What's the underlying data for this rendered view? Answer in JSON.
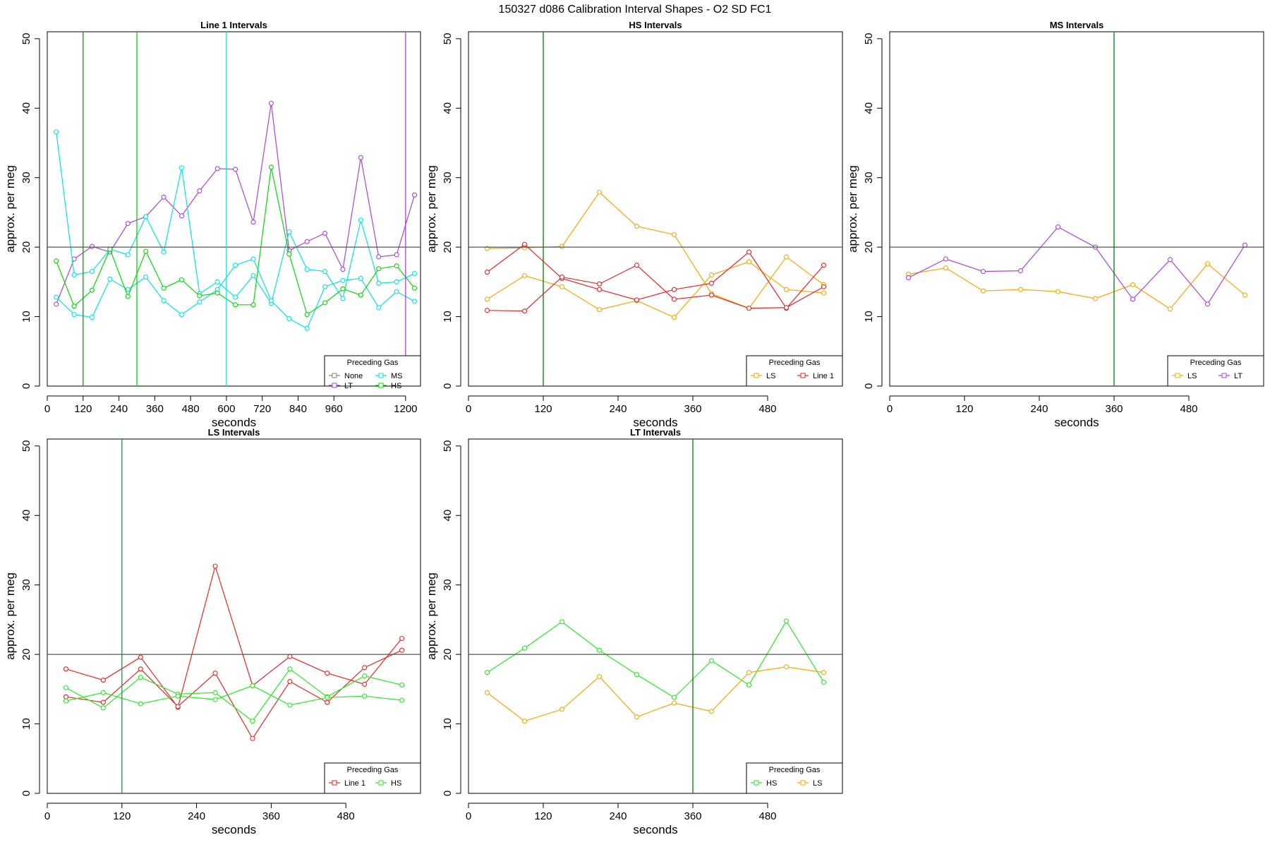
{
  "figure_title": "150327   d086   Calibration Interval Shapes - O2 SD FC1",
  "chart_data": [
    {
      "type": "line",
      "title": "Line 1 Intervals",
      "xlabel": "seconds",
      "ylabel": "approx. per meg",
      "xlim": [
        0,
        1250
      ],
      "ylim": [
        0,
        51
      ],
      "xticks": [
        0,
        120,
        240,
        360,
        480,
        600,
        720,
        840,
        960,
        1200
      ],
      "yticks": [
        0,
        10,
        20,
        30,
        40,
        50
      ],
      "hlines": [
        {
          "y": 20,
          "color": "#555555"
        }
      ],
      "vlines": [
        {
          "x": 120,
          "color": "#00a000"
        },
        {
          "x": 300,
          "color": "#00dd00"
        },
        {
          "x": 600,
          "color": "#00e5e5"
        },
        {
          "x": 1200,
          "color": "#b040e0"
        }
      ],
      "legend": {
        "title": "Preceding Gas",
        "position": "bottom-right",
        "ncol": 2,
        "entries": [
          {
            "name": "None",
            "color": "#808080"
          },
          {
            "name": "MS",
            "color": "#00e5e5"
          },
          {
            "name": "LT",
            "color": "#b040e0"
          },
          {
            "name": "HS",
            "color": "#00dd00"
          }
        ]
      },
      "series": [
        {
          "name": "LT",
          "color": "#b040e0",
          "x": [
            30,
            90,
            150,
            210,
            270,
            330,
            390,
            450,
            510,
            570,
            630,
            690,
            750,
            810,
            870,
            930,
            990,
            1050,
            1110,
            1170,
            1230
          ],
          "y": [
            11.8,
            18.3,
            20.1,
            19.3,
            23.4,
            24.4,
            27.2,
            24.5,
            28.1,
            31.3,
            31.2,
            23.6,
            40.7,
            19.5,
            20.8,
            22.0,
            16.8,
            32.9,
            18.6,
            18.9,
            27.5
          ]
        },
        {
          "name": "MS",
          "color": "#00e5e5",
          "x": [
            30,
            90,
            150,
            210,
            270,
            330,
            390,
            450,
            510,
            570,
            630,
            690,
            750,
            810,
            870,
            930,
            990,
            1050,
            1110,
            1170,
            1230
          ],
          "y": [
            36.6,
            16.0,
            16.5,
            19.7,
            18.9,
            24.4,
            19.3,
            31.4,
            13.3,
            15.0,
            12.8,
            15.9,
            11.9,
            22.2,
            16.8,
            16.5,
            12.6,
            23.9,
            14.8,
            15.0,
            16.2
          ]
        },
        {
          "name": "MS",
          "color": "#00e5e5",
          "x": [
            30,
            90,
            150,
            210,
            270,
            330,
            390,
            450,
            510,
            570,
            630,
            690,
            750,
            810,
            870,
            930,
            990,
            1050,
            1110,
            1170,
            1230
          ],
          "y": [
            12.8,
            10.3,
            9.9,
            15.4,
            13.9,
            15.7,
            12.3,
            10.3,
            12.1,
            13.9,
            17.4,
            18.3,
            12.3,
            9.7,
            8.3,
            14.3,
            15.2,
            15.5,
            11.3,
            13.6,
            12.2
          ]
        },
        {
          "name": "HS",
          "color": "#00dd00",
          "x": [
            30,
            90,
            150,
            210,
            270,
            330,
            390,
            450,
            510,
            570,
            630,
            690,
            750,
            810,
            870,
            930,
            990,
            1050,
            1110,
            1170,
            1230
          ],
          "y": [
            18.0,
            11.5,
            13.8,
            19.7,
            12.9,
            19.4,
            14.1,
            15.3,
            13.0,
            13.4,
            11.7,
            11.7,
            31.5,
            19.0,
            10.3,
            12.0,
            14.0,
            13.1,
            16.9,
            17.3,
            14.1
          ]
        }
      ]
    },
    {
      "type": "line",
      "title": "HS Intervals",
      "xlabel": "seconds",
      "ylabel": "approx. per meg",
      "xlim": [
        0,
        600
      ],
      "ylim": [
        0,
        51
      ],
      "xticks": [
        0,
        120,
        240,
        360,
        480
      ],
      "yticks": [
        0,
        10,
        20,
        30,
        40,
        50
      ],
      "hlines": [
        {
          "y": 20,
          "color": "#555555"
        }
      ],
      "vlines": [
        {
          "x": 120,
          "color": "#008000"
        }
      ],
      "legend": {
        "title": "Preceding Gas",
        "position": "bottom-right",
        "ncol": 2,
        "entries": [
          {
            "name": "LS",
            "color": "#ffa500"
          },
          {
            "name": "Line 1",
            "color": "#ee2222"
          }
        ]
      },
      "series": [
        {
          "name": "LS",
          "color": "#ffa500",
          "x": [
            30,
            90,
            150,
            210,
            270,
            330,
            390,
            450,
            510,
            570
          ],
          "y": [
            19.8,
            19.9,
            20.1,
            27.9,
            23.0,
            21.8,
            13.3,
            11.2,
            18.6,
            14.6
          ]
        },
        {
          "name": "LS",
          "color": "#ffa500",
          "x": [
            30,
            90,
            150,
            210,
            270,
            330,
            390,
            450,
            510,
            570
          ],
          "y": [
            12.5,
            15.9,
            14.3,
            11.0,
            12.3,
            9.9,
            16.0,
            17.9,
            13.9,
            13.4
          ]
        },
        {
          "name": "Line 1",
          "color": "#ee2222",
          "x": [
            30,
            90,
            150,
            210,
            270,
            330,
            390,
            450,
            510,
            570
          ],
          "y": [
            16.4,
            20.4,
            15.5,
            13.9,
            12.4,
            13.9,
            14.8,
            19.3,
            11.2,
            17.4
          ]
        },
        {
          "name": "Line 1",
          "color": "#ee2222",
          "x": [
            30,
            90,
            150,
            210,
            270,
            330,
            390,
            450,
            510,
            570
          ],
          "y": [
            10.9,
            10.8,
            15.7,
            14.7,
            17.4,
            12.5,
            13.1,
            11.2,
            11.3,
            14.3
          ]
        }
      ]
    },
    {
      "type": "line",
      "title": "MS Intervals",
      "xlabel": "seconds",
      "ylabel": "approx. per meg",
      "xlim": [
        0,
        600
      ],
      "ylim": [
        0,
        51
      ],
      "xticks": [
        0,
        120,
        240,
        360,
        480
      ],
      "yticks": [
        0,
        10,
        20,
        30,
        40,
        50
      ],
      "hlines": [
        {
          "y": 20,
          "color": "#555555"
        }
      ],
      "vlines": [
        {
          "x": 360,
          "color": "#008000"
        }
      ],
      "legend": {
        "title": "Preceding Gas",
        "position": "bottom-right",
        "ncol": 2,
        "entries": [
          {
            "name": "LS",
            "color": "#ffa500"
          },
          {
            "name": "LT",
            "color": "#b040e0"
          }
        ]
      },
      "series": [
        {
          "name": "LS",
          "color": "#ffa500",
          "x": [
            30,
            90,
            150,
            210,
            270,
            330,
            390,
            450,
            510,
            570
          ],
          "y": [
            16.1,
            17.0,
            13.7,
            13.9,
            13.6,
            12.6,
            14.6,
            11.1,
            17.6,
            13.1
          ]
        },
        {
          "name": "LT",
          "color": "#b040e0",
          "x": [
            30,
            90,
            150,
            210,
            270,
            330,
            390,
            450,
            510,
            570
          ],
          "y": [
            15.6,
            18.3,
            16.5,
            16.6,
            22.9,
            20.0,
            12.5,
            18.2,
            11.8,
            20.3
          ]
        }
      ]
    },
    {
      "type": "line",
      "title": "LS Intervals",
      "xlabel": "seconds",
      "ylabel": "approx. per meg",
      "xlim": [
        0,
        600
      ],
      "ylim": [
        0,
        51
      ],
      "xticks": [
        0,
        120,
        240,
        360,
        480
      ],
      "yticks": [
        0,
        10,
        20,
        30,
        40,
        50
      ],
      "hlines": [
        {
          "y": 20,
          "color": "#555555"
        }
      ],
      "vlines": [
        {
          "x": 120,
          "color": "#2e8b57"
        }
      ],
      "legend": {
        "title": "Preceding Gas",
        "position": "bottom-right",
        "ncol": 2,
        "entries": [
          {
            "name": "Line 1",
            "color": "#ee2222"
          },
          {
            "name": "HS",
            "color": "#22ee22"
          }
        ]
      },
      "series": [
        {
          "name": "Line 1",
          "color": "#ee2222",
          "x": [
            30,
            90,
            150,
            210,
            270,
            330,
            390,
            450,
            510,
            570
          ],
          "y": [
            17.9,
            16.3,
            19.6,
            12.4,
            32.7,
            15.5,
            19.7,
            17.3,
            15.7,
            22.3
          ]
        },
        {
          "name": "Line 1",
          "color": "#ee2222",
          "x": [
            30,
            90,
            150,
            210,
            270,
            330,
            390,
            450,
            510,
            570
          ],
          "y": [
            13.9,
            13.1,
            17.9,
            12.5,
            17.3,
            7.9,
            16.1,
            13.1,
            18.1,
            20.6
          ]
        },
        {
          "name": "HS",
          "color": "#22ee22",
          "x": [
            30,
            90,
            150,
            210,
            270,
            330,
            390,
            450,
            510,
            570
          ],
          "y": [
            15.2,
            12.3,
            16.7,
            14.3,
            14.5,
            10.4,
            17.9,
            13.9,
            16.9,
            15.6
          ]
        },
        {
          "name": "HS",
          "color": "#22ee22",
          "x": [
            30,
            90,
            150,
            210,
            270,
            330,
            390,
            450,
            510,
            570
          ],
          "y": [
            13.3,
            14.5,
            12.9,
            14.0,
            13.5,
            15.5,
            12.7,
            13.8,
            14.0,
            13.4
          ]
        }
      ]
    },
    {
      "type": "line",
      "title": "LT Intervals",
      "xlabel": "seconds",
      "ylabel": "approx. per meg",
      "xlim": [
        0,
        600
      ],
      "ylim": [
        0,
        51
      ],
      "xticks": [
        0,
        120,
        240,
        360,
        480
      ],
      "yticks": [
        0,
        10,
        20,
        30,
        40,
        50
      ],
      "hlines": [
        {
          "y": 20,
          "color": "#555555"
        }
      ],
      "vlines": [
        {
          "x": 360,
          "color": "#008000"
        }
      ],
      "legend": {
        "title": "Preceding Gas",
        "position": "bottom-right",
        "ncol": 2,
        "entries": [
          {
            "name": "HS",
            "color": "#22ee22"
          },
          {
            "name": "LS",
            "color": "#ffa500"
          }
        ]
      },
      "series": [
        {
          "name": "HS",
          "color": "#22ee22",
          "x": [
            30,
            90,
            150,
            210,
            270,
            330,
            390,
            450,
            510,
            570
          ],
          "y": [
            17.4,
            20.9,
            24.7,
            20.6,
            17.1,
            13.8,
            19.1,
            15.6,
            24.8,
            16.0
          ]
        },
        {
          "name": "LS",
          "color": "#ffa500",
          "x": [
            30,
            90,
            150,
            210,
            270,
            330,
            390,
            450,
            510,
            570
          ],
          "y": [
            14.5,
            10.4,
            12.1,
            16.8,
            11.0,
            13.0,
            11.8,
            17.4,
            18.2,
            17.4
          ]
        }
      ]
    }
  ]
}
